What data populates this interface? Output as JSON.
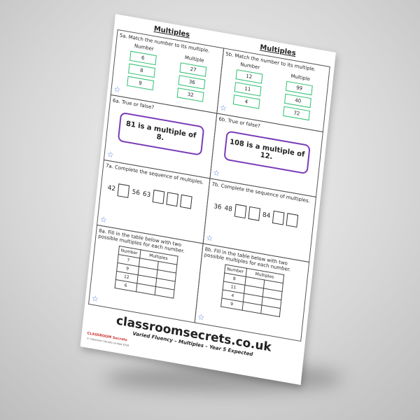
{
  "left": {
    "title": "Multiples",
    "q5": {
      "label": "5a. Match the number to its multiple.",
      "num_header": "Number",
      "mult_header": "Multiple",
      "numbers": [
        "6",
        "8",
        "9"
      ],
      "multiples": [
        "27",
        "36",
        "32"
      ]
    },
    "q6": {
      "label": "6a. True or false?",
      "statement": "81 is a multiple of 8."
    },
    "q7": {
      "label": "7a. Complete the sequence of multiples.",
      "items": [
        "42",
        "",
        "56",
        "63",
        "",
        "",
        ""
      ]
    },
    "q8": {
      "label": "8a. Fill in the table below with two possible multiples for each number.",
      "headers": [
        "Number",
        "Multiples"
      ],
      "numbers": [
        "7",
        "9",
        "12",
        "6"
      ]
    }
  },
  "right": {
    "title": "Multiples",
    "q5": {
      "label": "5b. Match the number to its multiple.",
      "num_header": "Number",
      "mult_header": "Multiple",
      "numbers": [
        "12",
        "11",
        "4"
      ],
      "multiples": [
        "99",
        "40",
        "72"
      ]
    },
    "q6": {
      "label": "6b. True or false?",
      "statement": "108 is a multiple of 12."
    },
    "q7": {
      "label": "7b. Complete the sequence of multiples.",
      "items": [
        "36",
        "48",
        "",
        "",
        "84",
        "",
        ""
      ]
    },
    "q8": {
      "label": "8b. Fill in the table below with two possible multiples for each number.",
      "headers": [
        "Number",
        "Multiples"
      ],
      "numbers": [
        "8",
        "11",
        "4",
        "9"
      ]
    }
  },
  "footer": {
    "site": "classroomsecrets.co.uk",
    "subtitle": "Varied Fluency – Multiples – Year 5 Expected",
    "logo": "CLASSROOM Secrets",
    "copyright": "© Classroom Secrets Limited 2018"
  },
  "colors": {
    "match_box": "#2fbf71",
    "statement_border": "#7a3db8",
    "star": "#4a7bd8"
  }
}
